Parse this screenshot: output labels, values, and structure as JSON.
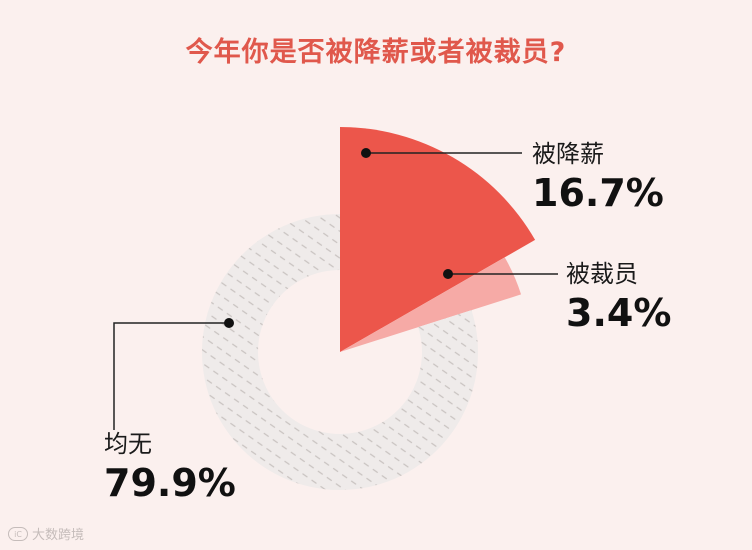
{
  "title": "今年你是否被降薪或者被裁员?",
  "colors": {
    "background": "#fbf0ee",
    "title": "#e0584c",
    "pay_cut": "#ec564b",
    "laid_off": "#f6aaa6",
    "neither": "#efebea",
    "neither_dots": "#c9c3c1",
    "leader": "#222222"
  },
  "chart_data": {
    "type": "pie",
    "title": "今年你是否被降薪或者被裁员?",
    "series": [
      {
        "label": "被降薪",
        "value": 16.7,
        "display": "16.7%"
      },
      {
        "label": "被裁员",
        "value": 3.4,
        "display": "3.4%"
      },
      {
        "label": "均无",
        "value": 79.9,
        "display": "79.9%"
      }
    ]
  },
  "watermark": {
    "logo": "iC",
    "text": "大数跨境"
  }
}
